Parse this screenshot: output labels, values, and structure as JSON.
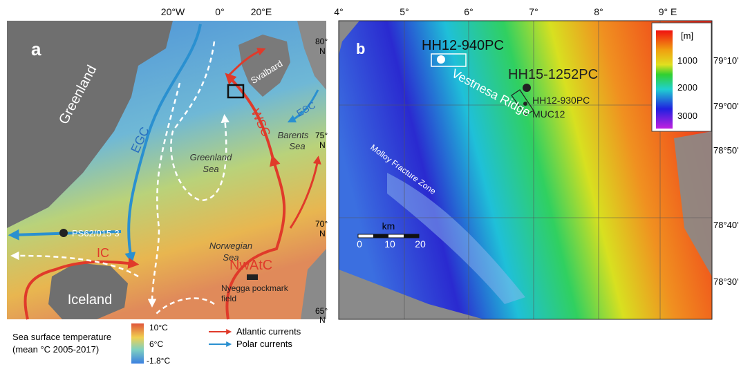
{
  "panel_a": {
    "label": "a",
    "lon_labels": [
      "20°W",
      "0°",
      "20°E"
    ],
    "lat_labels": [
      {
        "deg": "80°",
        "hemi": "N"
      },
      {
        "deg": "75°",
        "hemi": "N"
      },
      {
        "deg": "70°",
        "hemi": "N"
      },
      {
        "deg": "65°",
        "hemi": "N"
      }
    ],
    "land": [
      "Greenland",
      "Svalbard",
      "Iceland"
    ],
    "seas": [
      [
        "Greenland",
        "Sea"
      ],
      [
        "Barents",
        "Sea"
      ],
      [
        "Norwegian",
        "Sea"
      ]
    ],
    "currents": {
      "polar": [
        "EGC",
        "ESC"
      ],
      "atlantic": [
        "WSC",
        "IC",
        "NwAtC"
      ]
    },
    "site": "PS62/015-3",
    "field": [
      "Nyegga pockmark",
      "field"
    ],
    "legend": {
      "sst_title": [
        "Sea surface temperature",
        "(mean °C   2005-2017)"
      ],
      "sst_ticks": [
        "10°C",
        "6°C",
        "-1.8°C"
      ],
      "arrows": [
        "Atlantic currents",
        "Polar currents"
      ]
    }
  },
  "panel_b": {
    "label": "b",
    "lon_labels": [
      "4°",
      "5°",
      "6°",
      "7°",
      "8°",
      "9° E"
    ],
    "lat_labels": [
      "79°10'",
      "79°00'",
      "78°50'",
      "78°40'",
      "78°30'"
    ],
    "cores": [
      "HH12-940PC",
      "HH15-1252PC",
      "HH12-930PC",
      "MUC12"
    ],
    "features": [
      "Vestnesa Ridge",
      "Molloy Fracture Zone"
    ],
    "scale": {
      "unit": "km",
      "ticks": [
        "0",
        "10",
        "20"
      ]
    },
    "depth_legend": {
      "unit": "[m]",
      "ticks": [
        "1000",
        "2000",
        "3000"
      ]
    }
  }
}
